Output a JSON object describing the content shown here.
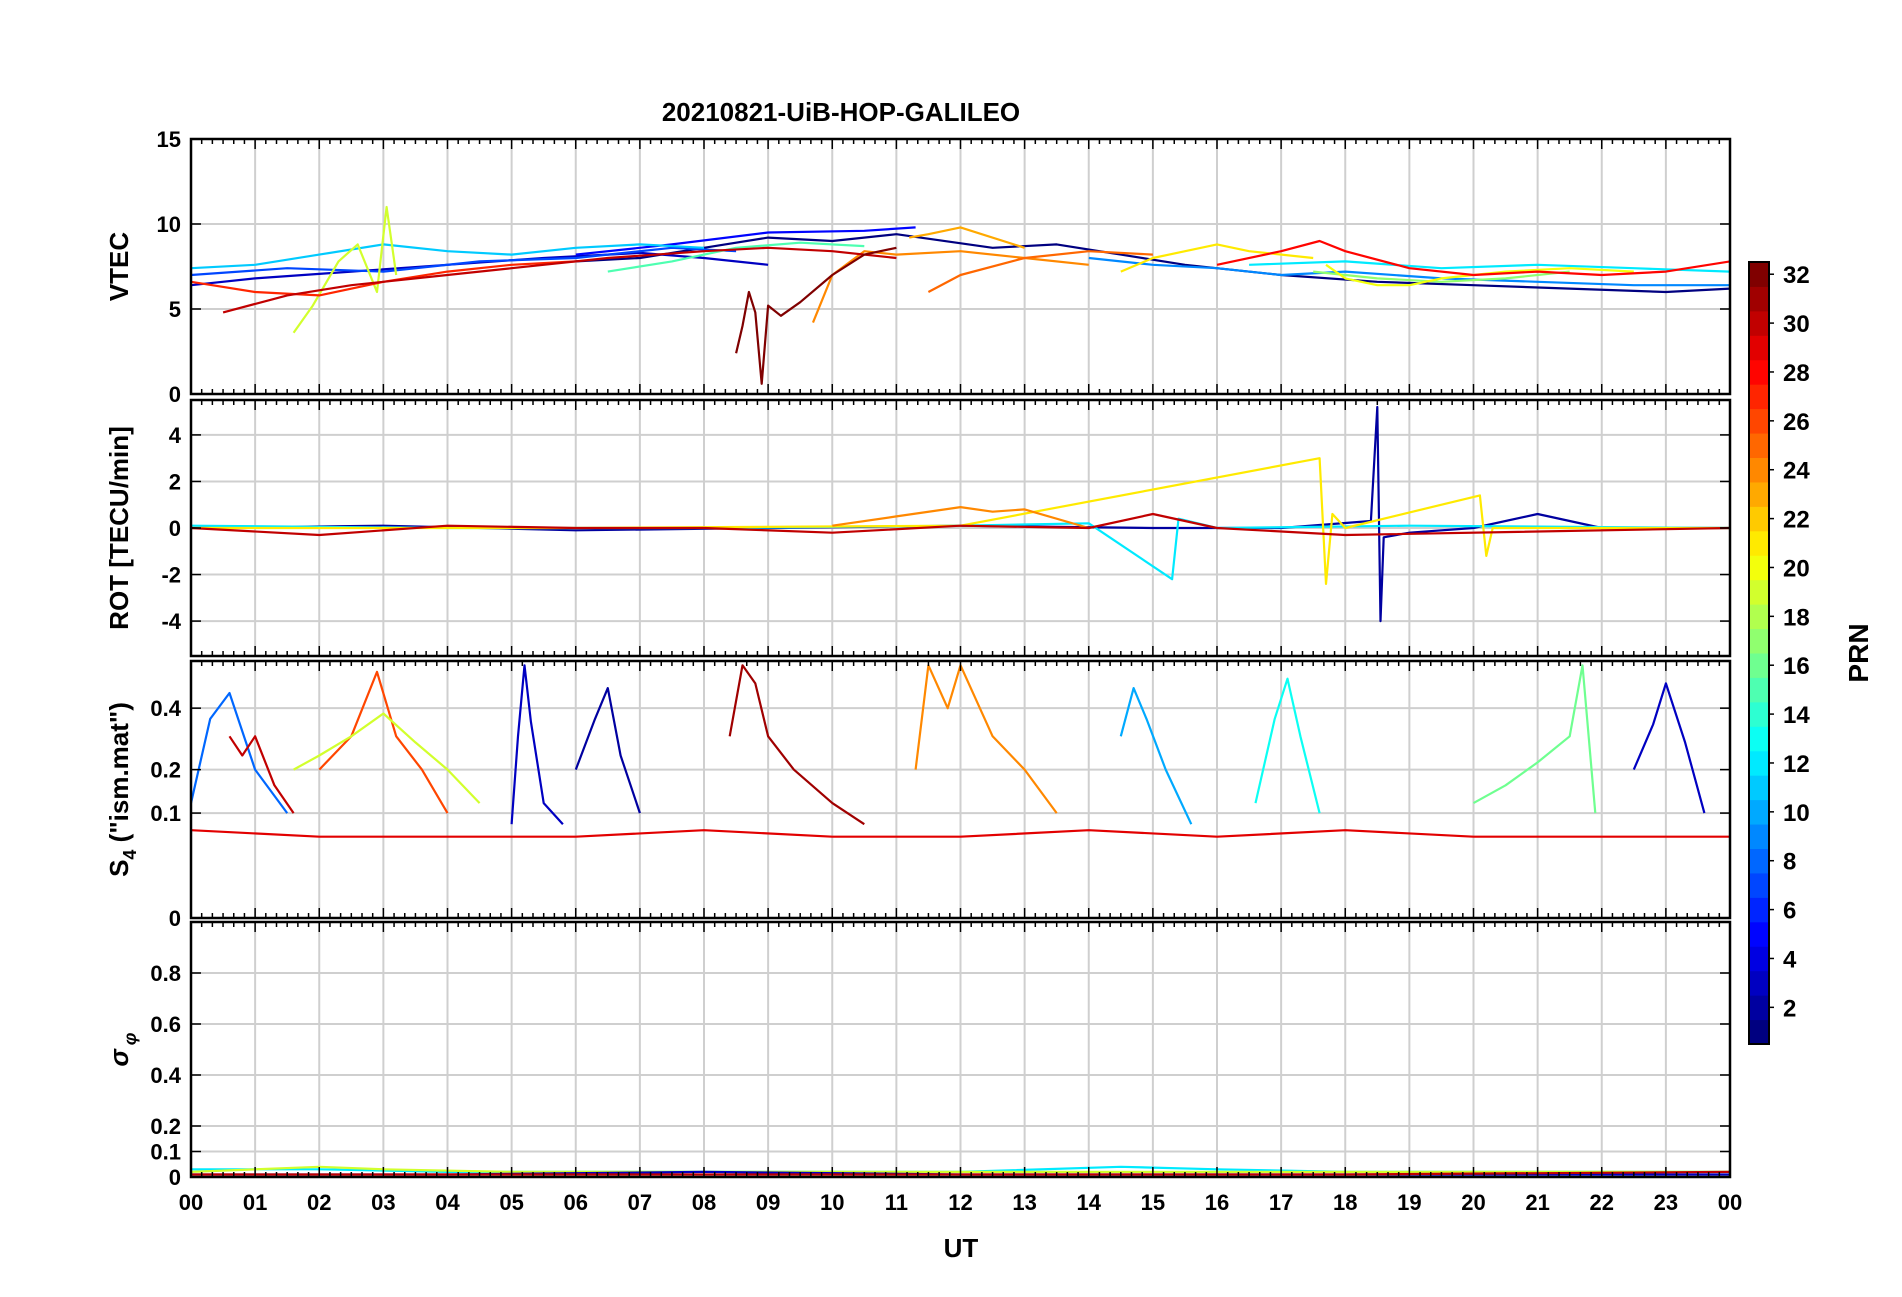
{
  "chart_data": {
    "type": "line",
    "title": "20210821-UiB-HOP-GALILEO",
    "xlabel": "UT",
    "xlim": [
      0,
      24
    ],
    "xticks": [
      "00",
      "01",
      "02",
      "03",
      "04",
      "05",
      "06",
      "07",
      "08",
      "09",
      "10",
      "11",
      "12",
      "13",
      "14",
      "15",
      "16",
      "17",
      "18",
      "19",
      "20",
      "21",
      "22",
      "23",
      "00"
    ],
    "grid": true,
    "panels": [
      {
        "id": "vtec",
        "ylabel": "VTEC",
        "ylim": [
          0,
          15
        ],
        "ytick_values": [
          0,
          5,
          10,
          15
        ],
        "ytick_labels": [
          "0",
          "5",
          "10",
          "15"
        ],
        "series": [
          {
            "prn": 1,
            "x": [
              6.0,
              7.0,
              8.0,
              9.0,
              10.0,
              11.0,
              12.5,
              13.5,
              14.5,
              15.5,
              17.0,
              18.5,
              20.0,
              21.5,
              23.0,
              24.0
            ],
            "y": [
              7.8,
              8.0,
              8.6,
              9.2,
              9.0,
              9.4,
              8.6,
              8.8,
              8.2,
              7.6,
              7.0,
              6.6,
              6.4,
              6.2,
              6.0,
              6.2
            ]
          },
          {
            "prn": 3,
            "x": [
              0.0,
              1.0,
              2.5,
              4.0,
              5.5,
              7.0,
              8.0,
              9.0
            ],
            "y": [
              6.4,
              6.8,
              7.2,
              7.6,
              8.0,
              8.3,
              8.0,
              7.6
            ]
          },
          {
            "prn": 5,
            "x": [
              6.0,
              7.5,
              9.0,
              10.5,
              11.3
            ],
            "y": [
              8.2,
              8.8,
              9.5,
              9.6,
              9.8
            ]
          },
          {
            "prn": 7,
            "x": [
              0.0,
              1.5,
              3.0,
              4.5,
              6.0,
              7.5,
              8.5
            ],
            "y": [
              7.0,
              7.4,
              7.2,
              7.8,
              8.0,
              8.6,
              8.4
            ]
          },
          {
            "prn": 9,
            "x": [
              14.0,
              15.0,
              16.0,
              17.0,
              18.0,
              19.5,
              21.0,
              22.5,
              24.0
            ],
            "y": [
              8.0,
              7.6,
              7.4,
              7.0,
              7.2,
              6.8,
              6.6,
              6.4,
              6.4
            ]
          },
          {
            "prn": 11,
            "x": [
              0.0,
              1.0,
              2.0,
              3.0,
              4.0,
              5.0,
              6.0,
              7.0,
              8.0
            ],
            "y": [
              7.4,
              7.6,
              8.2,
              8.8,
              8.4,
              8.2,
              8.6,
              8.8,
              8.6
            ]
          },
          {
            "prn": 12,
            "x": [
              16.5,
              18.0,
              19.5,
              21.0,
              22.5,
              24.0
            ],
            "y": [
              7.6,
              7.8,
              7.4,
              7.6,
              7.4,
              7.2
            ]
          },
          {
            "prn": 15,
            "x": [
              6.5,
              7.5,
              8.5,
              9.5,
              10.5
            ],
            "y": [
              7.2,
              7.8,
              8.6,
              8.9,
              8.7
            ]
          },
          {
            "prn": 17,
            "x": [
              17.5,
              18.5,
              19.5,
              20.5,
              21.5
            ],
            "y": [
              7.2,
              6.8,
              6.6,
              6.8,
              7.2
            ]
          },
          {
            "prn": 19,
            "x": [
              1.6,
              1.9,
              2.3,
              2.6,
              2.9,
              3.05,
              3.2
            ],
            "y": [
              3.6,
              5.2,
              7.8,
              8.8,
              6.0,
              11.0,
              7.0
            ]
          },
          {
            "prn": 20,
            "x": [
              17.7,
              18.0,
              18.5,
              19.0,
              19.5,
              20.5,
              21.5,
              22.5
            ],
            "y": [
              7.6,
              6.8,
              6.4,
              6.4,
              6.8,
              7.2,
              7.4,
              7.2
            ]
          },
          {
            "prn": 21,
            "x": [
              14.5,
              15.0,
              16.0,
              16.5,
              17.5
            ],
            "y": [
              7.2,
              8.0,
              8.8,
              8.4,
              8.0
            ]
          },
          {
            "prn": 23,
            "x": [
              11.2,
              11.5,
              12.0,
              13.0
            ],
            "y": [
              9.2,
              9.4,
              9.8,
              8.6
            ]
          },
          {
            "prn": 24,
            "x": [
              9.7,
              10.0,
              10.5,
              11.0,
              12.0,
              13.0,
              14.0
            ],
            "y": [
              4.2,
              7.0,
              8.4,
              8.2,
              8.4,
              8.0,
              7.6
            ]
          },
          {
            "prn": 25,
            "x": [
              11.5,
              12.0,
              13.0,
              14.0,
              15.0
            ],
            "y": [
              6.0,
              7.0,
              8.0,
              8.4,
              8.2
            ]
          },
          {
            "prn": 27,
            "x": [
              0.0,
              1.0,
              2.0,
              3.0,
              4.0,
              5.0,
              6.0
            ],
            "y": [
              6.6,
              6.0,
              5.8,
              6.6,
              7.2,
              7.6,
              7.8
            ]
          },
          {
            "prn": 28,
            "x": [
              16.0,
              17.0,
              17.6,
              18.0,
              19.0,
              20.0,
              21.0,
              22.0,
              23.0,
              24.0
            ],
            "y": [
              7.6,
              8.4,
              9.0,
              8.4,
              7.4,
              7.0,
              7.2,
              7.0,
              7.2,
              7.8
            ]
          },
          {
            "prn": 30,
            "x": [
              0.5,
              1.5,
              2.5,
              3.5,
              5.0,
              6.5,
              8.0,
              9.0,
              10.0,
              11.0
            ],
            "y": [
              4.8,
              5.8,
              6.4,
              6.8,
              7.4,
              8.0,
              8.4,
              8.6,
              8.4,
              8.0
            ]
          },
          {
            "prn": 32,
            "x": [
              8.5,
              8.6,
              8.7,
              8.8,
              8.9,
              9.0,
              9.2,
              9.5,
              10.0,
              10.5,
              11.0
            ],
            "y": [
              2.4,
              4.0,
              6.0,
              4.8,
              0.6,
              5.2,
              4.6,
              5.4,
              7.0,
              8.2,
              8.6
            ]
          }
        ]
      },
      {
        "id": "rot",
        "ylabel": "ROT [TECU/min]",
        "ylim": [
          -5.5,
          5.5
        ],
        "ytick_values": [
          -4,
          -2,
          0,
          2,
          4
        ],
        "ytick_labels": [
          "-4",
          "-2",
          "0",
          "2",
          "4"
        ],
        "series": [
          {
            "prn": 2,
            "x": [
              0.0,
              3.0,
              6.0,
              9.0,
              12.0,
              15.0,
              17.0,
              18.4,
              18.5,
              18.55,
              18.6,
              19.0,
              20.0,
              21.0,
              22.0,
              24.0
            ],
            "y": [
              0.0,
              0.1,
              -0.1,
              0.0,
              0.1,
              0.0,
              0.0,
              0.3,
              5.2,
              -4.0,
              -0.4,
              -0.2,
              0.0,
              0.6,
              0.0,
              0.0
            ]
          },
          {
            "prn": 12,
            "x": [
              0.0,
              4.0,
              8.0,
              12.0,
              14.0,
              15.3,
              15.4,
              16.0,
              19.0,
              24.0
            ],
            "y": [
              0.1,
              0.0,
              0.0,
              0.1,
              0.2,
              -2.2,
              0.4,
              0.0,
              0.1,
              0.0
            ]
          },
          {
            "prn": 21,
            "x": [
              0.0,
              6.0,
              12.0,
              17.6,
              17.7,
              17.8,
              18.0,
              20.1,
              20.2,
              20.3,
              24.0
            ],
            "y": [
              0.0,
              0.0,
              0.1,
              3.0,
              -2.4,
              0.6,
              0.0,
              1.4,
              -1.2,
              0.0,
              0.0
            ]
          },
          {
            "prn": 24,
            "x": [
              10.0,
              11.0,
              12.0,
              12.5,
              13.0,
              14.0
            ],
            "y": [
              0.1,
              0.5,
              0.9,
              0.7,
              0.8,
              0.0
            ]
          },
          {
            "prn": 30,
            "x": [
              0.0,
              2.0,
              4.0,
              6.0,
              8.0,
              10.0,
              12.0,
              14.0,
              15.0,
              16.0,
              18.0,
              24.0
            ],
            "y": [
              0.0,
              -0.3,
              0.1,
              0.0,
              0.0,
              -0.2,
              0.1,
              0.0,
              0.6,
              0.0,
              -0.3,
              0.0
            ]
          }
        ]
      },
      {
        "id": "s4",
        "ylabel": "S4 (\"ism.mat\")",
        "ylabel_main": "S",
        "ylabel_sub": "4",
        "ylabel_rest": " (\"ism.mat\")",
        "ylim": [
          0,
          0.6
        ],
        "yscale": "sqrt",
        "ytick_values": [
          0,
          0.1,
          0.2,
          0.4
        ],
        "ytick_labels": [
          "0",
          "0.1",
          "0.2",
          "0.4"
        ],
        "series": [
          {
            "prn": 3,
            "x": [
              5.0,
              5.1,
              5.2,
              5.3,
              5.5,
              5.8
            ],
            "y": [
              0.08,
              0.3,
              0.58,
              0.35,
              0.12,
              0.08
            ]
          },
          {
            "prn": 2,
            "x": [
              6.0,
              6.3,
              6.5,
              6.7,
              7.0
            ],
            "y": [
              0.2,
              0.36,
              0.48,
              0.24,
              0.1
            ]
          },
          {
            "prn": 10,
            "x": [
              14.5,
              14.7,
              14.9,
              15.2,
              15.6
            ],
            "y": [
              0.3,
              0.48,
              0.36,
              0.2,
              0.08
            ]
          },
          {
            "prn": 13,
            "x": [
              16.6,
              16.9,
              17.1,
              17.3,
              17.6
            ],
            "y": [
              0.12,
              0.36,
              0.52,
              0.3,
              0.1
            ]
          },
          {
            "prn": 16,
            "x": [
              20.0,
              20.5,
              21.0,
              21.5,
              21.7,
              21.9
            ],
            "y": [
              0.12,
              0.16,
              0.22,
              0.3,
              0.58,
              0.1
            ]
          },
          {
            "prn": 3,
            "x": [
              22.5,
              22.8,
              23.0,
              23.3,
              23.6
            ],
            "y": [
              0.2,
              0.34,
              0.5,
              0.28,
              0.1
            ]
          },
          {
            "prn": 24,
            "x": [
              11.3,
              11.5,
              11.8,
              12.0,
              12.5,
              13.0,
              13.5
            ],
            "y": [
              0.2,
              0.58,
              0.4,
              0.58,
              0.3,
              0.2,
              0.1
            ]
          },
          {
            "prn": 31,
            "x": [
              8.4,
              8.6,
              8.8,
              9.0,
              9.4,
              10.0,
              10.5
            ],
            "y": [
              0.3,
              0.58,
              0.5,
              0.3,
              0.2,
              0.12,
              0.08
            ]
          },
          {
            "prn": 26,
            "x": [
              2.0,
              2.5,
              2.9,
              3.2,
              3.6,
              4.0
            ],
            "y": [
              0.2,
              0.3,
              0.55,
              0.3,
              0.2,
              0.1
            ]
          },
          {
            "prn": 19,
            "x": [
              1.6,
              2.0,
              2.5,
              3.0,
              3.5,
              4.0,
              4.5
            ],
            "y": [
              0.2,
              0.24,
              0.3,
              0.38,
              0.28,
              0.2,
              0.12
            ]
          },
          {
            "prn": 29,
            "x": [
              0.0,
              2.0,
              4.0,
              6.0,
              8.0,
              10.0,
              12.0,
              14.0,
              16.0,
              18.0,
              20.0,
              22.0,
              24.0
            ],
            "y": [
              0.07,
              0.06,
              0.06,
              0.06,
              0.07,
              0.06,
              0.06,
              0.07,
              0.06,
              0.07,
              0.06,
              0.06,
              0.06
            ]
          },
          {
            "prn": 8,
            "x": [
              0.0,
              0.3,
              0.6,
              1.0,
              1.5
            ],
            "y": [
              0.12,
              0.36,
              0.46,
              0.2,
              0.1
            ]
          },
          {
            "prn": 30,
            "x": [
              0.6,
              0.8,
              1.0,
              1.3,
              1.6
            ],
            "y": [
              0.3,
              0.24,
              0.3,
              0.16,
              0.1
            ]
          }
        ]
      },
      {
        "id": "sigma",
        "ylabel": "σφ",
        "ylabel_main": "σ",
        "ylabel_sub": "φ",
        "ylim": [
          0,
          1
        ],
        "ytick_values": [
          0,
          0.1,
          0.2,
          0.4,
          0.6,
          0.8
        ],
        "ytick_labels": [
          "0",
          "0.1",
          "0.2",
          "0.4",
          "0.6",
          "0.8"
        ],
        "series": [
          {
            "prn": 12,
            "x": [
              0.0,
              2.0,
              4.0,
              6.0,
              8.0,
              10.0,
              12.0,
              14.5,
              16.0,
              18.0,
              20.0,
              22.0,
              24.0
            ],
            "y": [
              0.03,
              0.03,
              0.02,
              0.02,
              0.02,
              0.02,
              0.02,
              0.04,
              0.03,
              0.02,
              0.02,
              0.02,
              0.02
            ]
          },
          {
            "prn": 19,
            "x": [
              0.0,
              2.0,
              3.0,
              5.0,
              8.0,
              12.0,
              16.0,
              20.0,
              24.0
            ],
            "y": [
              0.02,
              0.04,
              0.03,
              0.02,
              0.02,
              0.02,
              0.02,
              0.02,
              0.02
            ]
          },
          {
            "prn": 3,
            "x": [
              0.0,
              4.0,
              8.0,
              12.0,
              16.0,
              20.0,
              24.0
            ],
            "y": [
              0.01,
              0.01,
              0.02,
              0.01,
              0.01,
              0.01,
              0.01
            ]
          },
          {
            "prn": 30,
            "x": [
              0.0,
              6.0,
              12.0,
              18.0,
              24.0
            ],
            "y": [
              0.01,
              0.01,
              0.01,
              0.01,
              0.02
            ]
          }
        ]
      }
    ],
    "colorbar": {
      "label": "PRN",
      "range": [
        1,
        32
      ],
      "colormap": "jet",
      "ticks": [
        "2",
        "4",
        "6",
        "8",
        "10",
        "12",
        "14",
        "16",
        "18",
        "20",
        "22",
        "24",
        "26",
        "28",
        "30",
        "32"
      ],
      "tick_values": [
        2,
        4,
        6,
        8,
        10,
        12,
        14,
        16,
        18,
        20,
        22,
        24,
        26,
        28,
        30,
        32
      ]
    }
  },
  "colors": {
    "background": "#ffffff",
    "axes": "#000000",
    "grid": "#cfcfcf"
  }
}
